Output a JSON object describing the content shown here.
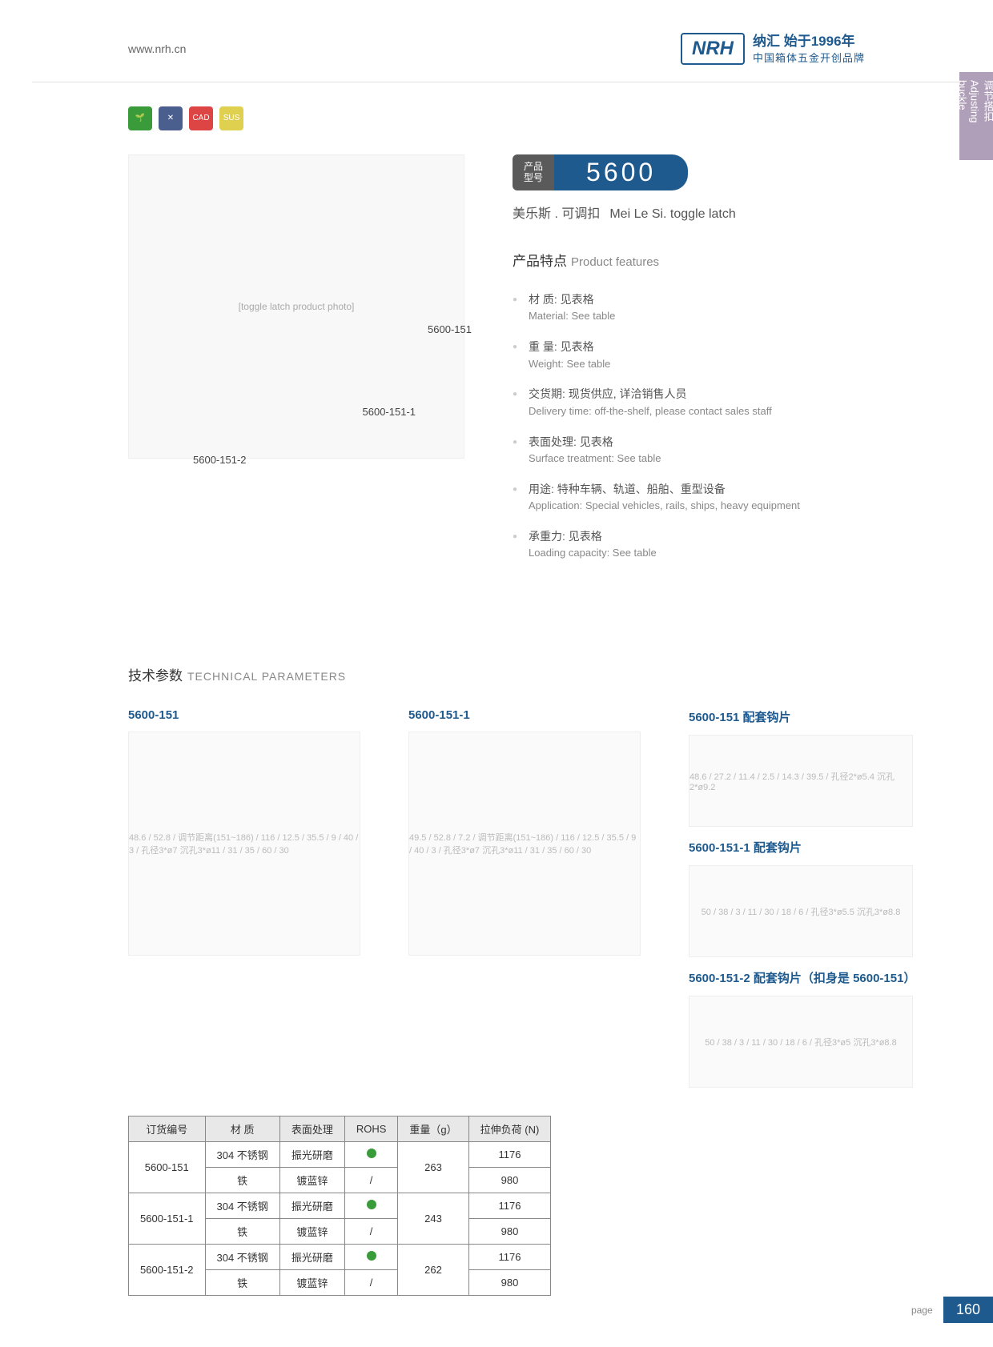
{
  "header": {
    "url": "www.nrh.cn",
    "logo": "NRH",
    "tag1": "纳汇 始于1996年",
    "tag2": "中国箱体五金开创品牌",
    "sideTab": "调节搭扣 Adjusting buckle"
  },
  "badges": [
    "🌱",
    "✕",
    "CAD",
    "SUS"
  ],
  "modelLabel": {
    "cn1": "产品",
    "cn2": "型号",
    "num": "5600"
  },
  "subtitle": {
    "cn": "美乐斯 . 可调扣",
    "en": "Mei Le Si. toggle latch"
  },
  "imgLabels": [
    "5600-151",
    "5600-151-1",
    "5600-151-2"
  ],
  "featuresHd": {
    "cn": "产品特点",
    "en": "Product features"
  },
  "features": [
    {
      "cn": "材 质: 见表格",
      "en": "Material: See table"
    },
    {
      "cn": "重 量: 见表格",
      "en": "Weight: See table"
    },
    {
      "cn": "交货期: 现货供应, 详洽销售人员",
      "en": "Delivery time: off-the-shelf, please contact sales staff"
    },
    {
      "cn": "表面处理: 见表格",
      "en": "Surface treatment: See table"
    },
    {
      "cn": "用途: 特种车辆、轨道、船舶、重型设备",
      "en": "Application: Special vehicles, rails, ships, heavy equipment"
    },
    {
      "cn": "承重力: 见表格",
      "en": "Loading capacity: See table"
    }
  ],
  "techHd": {
    "cn": "技术参数",
    "en": "TECHNICAL PARAMETERS"
  },
  "diagTitles": [
    "5600-151",
    "5600-151-1",
    "5600-151 配套钩片",
    "5600-151-1 配套钩片",
    "5600-151-2 配套钩片（扣身是 5600-151）"
  ],
  "table": {
    "headers": [
      "订货编号",
      "材   质",
      "表面处理",
      "ROHS",
      "重量（g）",
      "拉伸负荷 (N)"
    ],
    "rows": [
      [
        "5600-151",
        "304 不锈钢",
        "振光研磨",
        "dot",
        "263",
        "1176"
      ],
      [
        "",
        "铁",
        "镀蓝锌",
        "/",
        "",
        "980"
      ],
      [
        "5600-151-1",
        "304 不锈钢",
        "振光研磨",
        "dot",
        "243",
        "1176"
      ],
      [
        "",
        "铁",
        "镀蓝锌",
        "/",
        "",
        "980"
      ],
      [
        "5600-151-2",
        "304 不锈钢",
        "振光研磨",
        "dot",
        "262",
        "1176"
      ],
      [
        "",
        "铁",
        "镀蓝锌",
        "/",
        "",
        "980"
      ]
    ]
  },
  "page": "160",
  "diagDims": {
    "d1": "48.6 / 52.8 / 调节距离(151~186) / 116 / 12.5 / 35.5 / 9 / 40 / 3 / 孔径3*ø7 沉孔3*ø11 / 31 / 35 / 60 / 30",
    "d2": "49.5 / 52.8 / 7.2 / 调节距离(151~186) / 116 / 12.5 / 35.5 / 9 / 40 / 3 / 孔径3*ø7 沉孔3*ø11 / 31 / 35 / 60 / 30",
    "d3": "48.6 / 27.2 / 11.4 / 2.5 / 14.3 / 39.5 / 孔径2*ø5.4 沉孔2*ø9.2",
    "d4": "50 / 38 / 3 / 11 / 30 / 18 / 6 / 孔径3*ø5.5 沉孔3*ø8.8",
    "d5": "50 / 38 / 3 / 11 / 30 / 18 / 6 / 孔径3*ø5 沉孔3*ø8.8"
  }
}
